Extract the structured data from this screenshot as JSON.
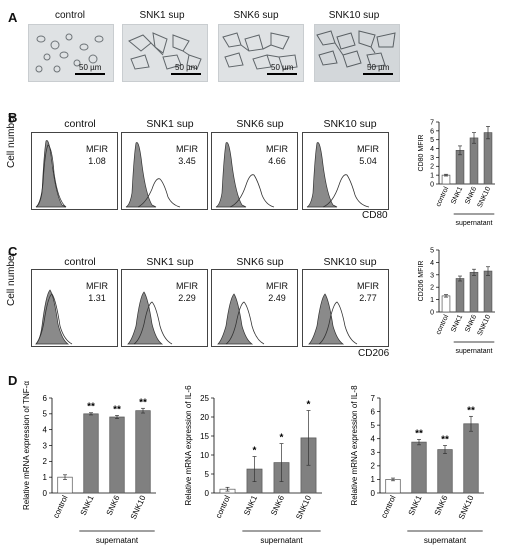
{
  "panelA": {
    "label": "A",
    "titles": [
      "control",
      "SNK1 sup",
      "SNK6 sup",
      "SNK10 sup"
    ],
    "scalebars": [
      "50 µm",
      "50 µm",
      "50 µm",
      "50 µm"
    ]
  },
  "panelB": {
    "label": "B",
    "titles": [
      "control",
      "SNK1 sup",
      "SNK6 sup",
      "SNK10 sup"
    ],
    "mfir_caption": "MFIR",
    "mfir_values": [
      "1.08",
      "3.45",
      "4.66",
      "5.04"
    ],
    "y_axis": "Cell number",
    "x_axis": "CD80"
  },
  "panelC": {
    "label": "C",
    "titles": [
      "control",
      "SNK1 sup",
      "SNK6 sup",
      "SNK10 sup"
    ],
    "mfir_caption": "MFIR",
    "mfir_values": [
      "1.31",
      "2.29",
      "2.49",
      "2.77"
    ],
    "y_axis": "Cell number",
    "x_axis": "CD206"
  },
  "panelD": {
    "label": "D"
  },
  "chart_data": [
    {
      "type": "bar",
      "id": "B-bar",
      "categories": [
        "control",
        "SNK1",
        "SNK6",
        "SNK10"
      ],
      "values": [
        1.0,
        3.8,
        5.2,
        5.8
      ],
      "errors": [
        0.1,
        0.5,
        0.6,
        0.7
      ],
      "ylabel": "CD80 MFIR",
      "xlabel": "supernatant",
      "ylim": [
        0,
        7
      ],
      "yticks": [
        0,
        1,
        2,
        3,
        4,
        5,
        6,
        7
      ],
      "colors": [
        "#ffffff",
        "#808080",
        "#808080",
        "#808080"
      ]
    },
    {
      "type": "bar",
      "id": "C-bar",
      "categories": [
        "control",
        "SNK1",
        "SNK6",
        "SNK10"
      ],
      "values": [
        1.3,
        2.7,
        3.2,
        3.3
      ],
      "errors": [
        0.1,
        0.2,
        0.25,
        0.35
      ],
      "ylabel": "CD206 MFIR",
      "xlabel": "supernatant",
      "ylim": [
        0,
        5
      ],
      "yticks": [
        0,
        1,
        2,
        3,
        4,
        5
      ],
      "colors": [
        "#ffffff",
        "#808080",
        "#808080",
        "#808080"
      ]
    },
    {
      "type": "bar",
      "id": "D-tnf",
      "categories": [
        "control",
        "SNK1",
        "SNK6",
        "SNK10"
      ],
      "values": [
        1.0,
        5.0,
        4.8,
        5.2
      ],
      "errors": [
        0.15,
        0.07,
        0.1,
        0.15
      ],
      "significance": [
        "",
        "**",
        "**",
        "**"
      ],
      "ylabel": "Relative mRNA expression of TNF-α",
      "xlabel": "supernatant",
      "ylim": [
        0,
        6
      ],
      "yticks": [
        0,
        1,
        2,
        3,
        4,
        5,
        6
      ],
      "colors": [
        "#ffffff",
        "#808080",
        "#808080",
        "#808080"
      ]
    },
    {
      "type": "bar",
      "id": "D-il6",
      "categories": [
        "control",
        "SNK1",
        "SNK6",
        "SNK10"
      ],
      "values": [
        1.0,
        6.3,
        8.0,
        14.5
      ],
      "errors": [
        0.5,
        3.3,
        5.0,
        7.2
      ],
      "significance": [
        "",
        "*",
        "*",
        "*"
      ],
      "ylabel": "Relative mRNA expression of IL-6",
      "xlabel": "supernatant",
      "ylim": [
        0,
        25
      ],
      "yticks": [
        0,
        5,
        10,
        15,
        20,
        25
      ],
      "colors": [
        "#ffffff",
        "#808080",
        "#808080",
        "#808080"
      ]
    },
    {
      "type": "bar",
      "id": "D-il8",
      "categories": [
        "control",
        "SNK1",
        "SNK6",
        "SNK10"
      ],
      "values": [
        1.0,
        3.75,
        3.2,
        5.1
      ],
      "errors": [
        0.1,
        0.2,
        0.3,
        0.55
      ],
      "significance": [
        "",
        "**",
        "**",
        "**"
      ],
      "ylabel": "Relative mRNA expression of IL-8",
      "xlabel": "supernatant",
      "ylim": [
        0,
        7
      ],
      "yticks": [
        0,
        1,
        2,
        3,
        4,
        5,
        6,
        7
      ],
      "colors": [
        "#ffffff",
        "#808080",
        "#808080",
        "#808080"
      ]
    }
  ]
}
